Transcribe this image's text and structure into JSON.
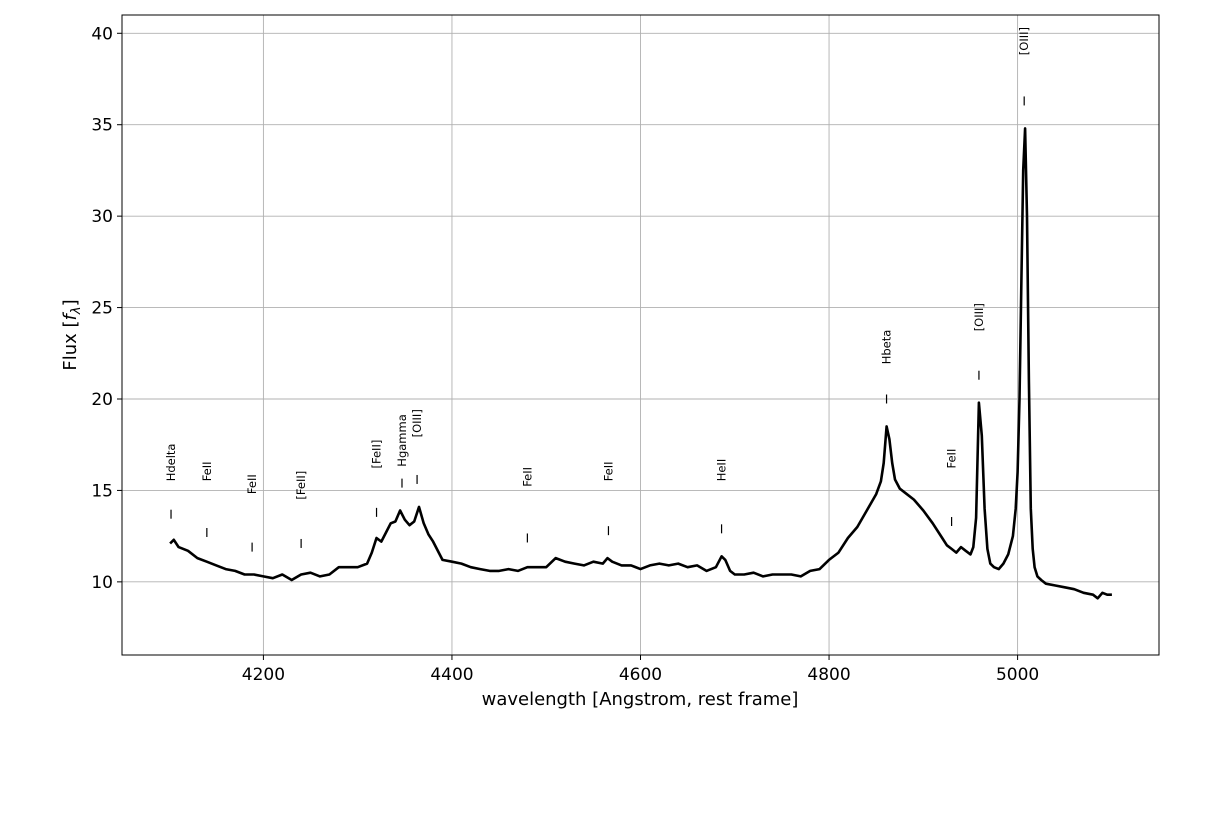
{
  "chart_data": {
    "type": "line",
    "xlabel": "wavelength [Angstrom, rest frame]",
    "ylabel_prefix": "Flux [",
    "ylabel_symbol": "f",
    "ylabel_subscript": "λ",
    "ylabel_suffix": "]",
    "xlim": [
      4050,
      5150
    ],
    "ylim": [
      6.0,
      41.0
    ],
    "xticks": [
      4200,
      4400,
      4600,
      4800,
      5000
    ],
    "yticks": [
      10,
      15,
      20,
      25,
      30,
      35,
      40
    ],
    "xtick_labels": [
      "4200",
      "4400",
      "4600",
      "4800",
      "5000"
    ],
    "ytick_labels": [
      "10",
      "15",
      "20",
      "25",
      "30",
      "35",
      "40"
    ],
    "grid": true,
    "series": [
      {
        "color": "#000000",
        "x": [
          4101,
          4105,
          4110,
          4120,
          4130,
          4140,
          4150,
          4160,
          4170,
          4180,
          4190,
          4200,
          4210,
          4220,
          4230,
          4240,
          4250,
          4260,
          4270,
          4280,
          4290,
          4300,
          4310,
          4315,
          4320,
          4325,
          4330,
          4335,
          4340,
          4345,
          4350,
          4355,
          4360,
          4365,
          4370,
          4375,
          4380,
          4390,
          4400,
          4410,
          4420,
          4430,
          4440,
          4450,
          4460,
          4470,
          4480,
          4490,
          4500,
          4510,
          4520,
          4530,
          4540,
          4550,
          4560,
          4565,
          4570,
          4580,
          4590,
          4600,
          4610,
          4620,
          4630,
          4640,
          4650,
          4660,
          4670,
          4680,
          4686,
          4690,
          4695,
          4700,
          4710,
          4720,
          4730,
          4740,
          4750,
          4760,
          4770,
          4780,
          4790,
          4800,
          4810,
          4820,
          4830,
          4840,
          4850,
          4855,
          4858,
          4861,
          4864,
          4867,
          4870,
          4875,
          4880,
          4890,
          4900,
          4910,
          4920,
          4925,
          4930,
          4935,
          4940,
          4945,
          4950,
          4953,
          4956,
          4959,
          4962,
          4965,
          4968,
          4971,
          4975,
          4980,
          4985,
          4990,
          4995,
          4998,
          5000,
          5002,
          5004,
          5006,
          5008,
          5010,
          5012,
          5014,
          5016,
          5018,
          5021,
          5025,
          5030,
          5040,
          5050,
          5060,
          5070,
          5080,
          5085,
          5090,
          5095,
          5100
        ],
        "y": [
          12.1,
          12.3,
          11.9,
          11.7,
          11.3,
          11.1,
          10.9,
          10.7,
          10.6,
          10.4,
          10.4,
          10.3,
          10.2,
          10.4,
          10.1,
          10.4,
          10.5,
          10.3,
          10.4,
          10.8,
          10.8,
          10.8,
          11.0,
          11.6,
          12.4,
          12.2,
          12.7,
          13.2,
          13.3,
          13.9,
          13.4,
          13.1,
          13.3,
          14.1,
          13.2,
          12.6,
          12.2,
          11.2,
          11.1,
          11.0,
          10.8,
          10.7,
          10.6,
          10.6,
          10.7,
          10.6,
          10.8,
          10.8,
          10.8,
          11.3,
          11.1,
          11.0,
          10.9,
          11.1,
          11.0,
          11.3,
          11.1,
          10.9,
          10.9,
          10.7,
          10.9,
          11.0,
          10.9,
          11.0,
          10.8,
          10.9,
          10.6,
          10.8,
          11.4,
          11.2,
          10.6,
          10.4,
          10.4,
          10.5,
          10.3,
          10.4,
          10.4,
          10.4,
          10.3,
          10.6,
          10.7,
          11.2,
          11.6,
          12.4,
          13.0,
          13.9,
          14.8,
          15.5,
          16.5,
          18.5,
          17.8,
          16.5,
          15.6,
          15.1,
          14.9,
          14.5,
          13.9,
          13.2,
          12.4,
          12.0,
          11.8,
          11.6,
          11.9,
          11.7,
          11.5,
          11.9,
          13.5,
          19.8,
          18.0,
          14.0,
          11.8,
          11.0,
          10.8,
          10.7,
          11.0,
          11.5,
          12.5,
          14.0,
          16.0,
          20.0,
          26.5,
          32.5,
          34.8,
          30.0,
          21.0,
          14.0,
          11.8,
          10.8,
          10.3,
          10.1,
          9.9,
          9.8,
          9.7,
          9.6,
          9.4,
          9.3,
          9.1,
          9.4,
          9.3,
          9.3
        ]
      }
    ],
    "line_labels": [
      {
        "text": "Hdelta",
        "x": 4102,
        "y_tick": 13.7,
        "y_text": 15.5
      },
      {
        "text": "FeII",
        "x": 4140,
        "y_tick": 12.7,
        "y_text": 15.5
      },
      {
        "text": "FeII",
        "x": 4188,
        "y_tick": 11.9,
        "y_text": 14.8
      },
      {
        "text": "[FeII]",
        "x": 4240,
        "y_tick": 12.1,
        "y_text": 14.5
      },
      {
        "text": "[FeII]",
        "x": 4320,
        "y_tick": 13.8,
        "y_text": 16.2
      },
      {
        "text": "Hgamma",
        "x": 4347,
        "y_tick": 15.4,
        "y_text": 16.3
      },
      {
        "text": "[OIII]",
        "x": 4363,
        "y_tick": 15.6,
        "y_text": 17.9
      },
      {
        "text": "FeII",
        "x": 4480,
        "y_tick": 12.4,
        "y_text": 15.2
      },
      {
        "text": "FeII",
        "x": 4566,
        "y_tick": 12.8,
        "y_text": 15.5
      },
      {
        "text": "HeII",
        "x": 4686,
        "y_tick": 12.9,
        "y_text": 15.5
      },
      {
        "text": "Hbeta",
        "x": 4861,
        "y_tick": 20.0,
        "y_text": 21.9
      },
      {
        "text": "FeII",
        "x": 4930,
        "y_tick": 13.3,
        "y_text": 16.2
      },
      {
        "text": "[OIII]",
        "x": 4959,
        "y_tick": 21.3,
        "y_text": 23.7
      },
      {
        "text": "[OIII]",
        "x": 5007,
        "y_tick": 36.3,
        "y_text": 38.8
      }
    ]
  }
}
